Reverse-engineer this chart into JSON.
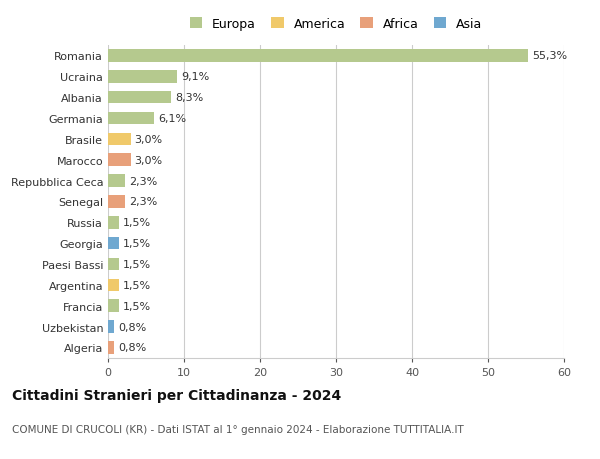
{
  "countries": [
    "Romania",
    "Ucraina",
    "Albania",
    "Germania",
    "Brasile",
    "Marocco",
    "Repubblica Ceca",
    "Senegal",
    "Russia",
    "Georgia",
    "Paesi Bassi",
    "Argentina",
    "Francia",
    "Uzbekistan",
    "Algeria"
  ],
  "values": [
    55.3,
    9.1,
    8.3,
    6.1,
    3.0,
    3.0,
    2.3,
    2.3,
    1.5,
    1.5,
    1.5,
    1.5,
    1.5,
    0.8,
    0.8
  ],
  "labels": [
    "55,3%",
    "9,1%",
    "8,3%",
    "6,1%",
    "3,0%",
    "3,0%",
    "2,3%",
    "2,3%",
    "1,5%",
    "1,5%",
    "1,5%",
    "1,5%",
    "1,5%",
    "0,8%",
    "0,8%"
  ],
  "continents": [
    "Europa",
    "Europa",
    "Europa",
    "Europa",
    "America",
    "Africa",
    "Europa",
    "Africa",
    "Europa",
    "Asia",
    "Europa",
    "America",
    "Europa",
    "Asia",
    "Africa"
  ],
  "continent_colors": {
    "Europa": "#b5c98e",
    "America": "#f0c96a",
    "Africa": "#e8a07a",
    "Asia": "#6fa8d0"
  },
  "legend_entries": [
    "Europa",
    "America",
    "Africa",
    "Asia"
  ],
  "legend_colors": [
    "#b5c98e",
    "#f0c96a",
    "#e8a07a",
    "#6fa8d0"
  ],
  "title": "Cittadini Stranieri per Cittadinanza - 2024",
  "subtitle": "COMUNE DI CRUCOLI (KR) - Dati ISTAT al 1° gennaio 2024 - Elaborazione TUTTITALIA.IT",
  "xlim": [
    0,
    60
  ],
  "xticks": [
    0,
    10,
    20,
    30,
    40,
    50,
    60
  ],
  "background_color": "#ffffff",
  "grid_color": "#cccccc",
  "bar_height": 0.6,
  "label_fontsize": 8,
  "tick_fontsize": 8,
  "title_fontsize": 10,
  "subtitle_fontsize": 7.5
}
